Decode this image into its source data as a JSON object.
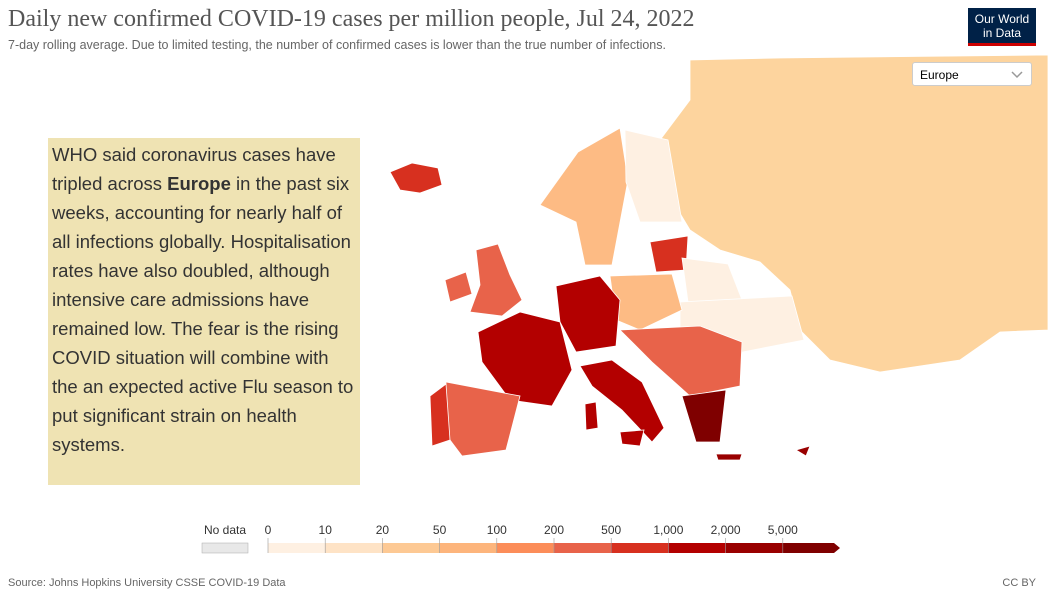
{
  "header": {
    "title": "Daily new confirmed COVID-19 cases per million people, Jul 24, 2022",
    "subtitle": "7-day rolling average. Due to limited testing, the number of confirmed cases is lower than the true number of infections.",
    "logo": [
      "Our World",
      "in Data"
    ]
  },
  "region_select": "Europe",
  "annotation": {
    "before": "WHO said coronavirus cases have tripled across ",
    "bold": "Europe",
    "after": " in the past six weeks, accounting for nearly half of all infections globally. Hospitalisation rates have also doubled, although intensive care admissions have remained low. The fear is the rising COVID situation will combine with the an expected active Flu season to put significant strain on health systems."
  },
  "legend": {
    "no_data": "No data",
    "ticks": [
      0,
      10,
      20,
      50,
      100,
      {
        "value": 200,
        "label": "200"
      },
      500,
      {
        "value": 1000,
        "label": "1,000"
      },
      {
        "value": 2000,
        "label": "2,000"
      },
      {
        "value": 5000,
        "label": "5,000"
      }
    ],
    "colors": [
      "#fef0e2",
      "#fee3c6",
      "#fdc994",
      "#fdb57c",
      "#fc8d59",
      "#e8634a",
      "#d7301f",
      "#b30000",
      "#990000",
      "#7f0000"
    ]
  },
  "footer": {
    "source": "Source: Johns Hopkins University CSSE COVID-19 Data",
    "license": "CC BY"
  }
}
